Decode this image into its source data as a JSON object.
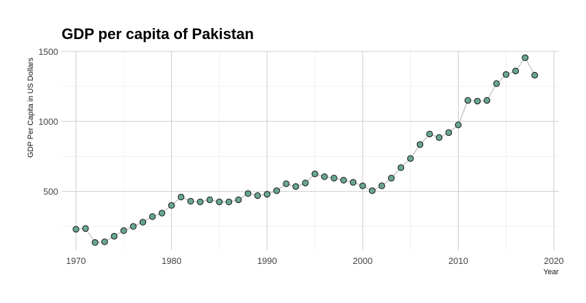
{
  "chart_data": {
    "type": "scatter",
    "title": "GDP per capita of Pakistan",
    "xlabel": "Year",
    "ylabel": "GDP Per Capita in US Dollars",
    "xlim": [
      1968.5,
      2020.5
    ],
    "ylim": [
      80,
      1500
    ],
    "x_ticks": [
      1970,
      1980,
      1990,
      2000,
      2010,
      2020
    ],
    "y_ticks": [
      500,
      1000,
      1500
    ],
    "grid": true,
    "point_color": "#69a78e",
    "line_color": "#9a9a9a",
    "series": [
      {
        "x": [
          1970,
          1971,
          1972,
          1973,
          1974,
          1975,
          1976,
          1977,
          1978,
          1979,
          1980,
          1981,
          1982,
          1983,
          1984,
          1985,
          1986,
          1987,
          1988,
          1989,
          1990,
          1991,
          1992,
          1993,
          1994,
          1995,
          1996,
          1997,
          1998,
          1999,
          2000,
          2001,
          2002,
          2003,
          2004,
          2005,
          2006,
          2007,
          2008,
          2009,
          2010,
          2011,
          2012,
          2013,
          2014,
          2015,
          2016,
          2017,
          2018
        ],
        "y": [
          230,
          235,
          135,
          140,
          180,
          220,
          250,
          280,
          320,
          345,
          400,
          460,
          430,
          425,
          440,
          425,
          425,
          440,
          485,
          470,
          480,
          505,
          555,
          535,
          560,
          625,
          605,
          595,
          580,
          565,
          540,
          505,
          540,
          595,
          670,
          735,
          835,
          910,
          885,
          920,
          975,
          1150,
          1145,
          1150,
          1270,
          1335,
          1360,
          1455,
          1330
        ]
      }
    ]
  }
}
